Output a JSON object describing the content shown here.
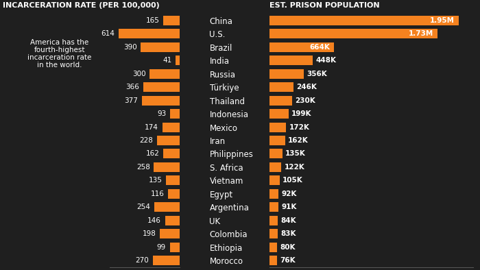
{
  "chart_data": [
    {
      "type": "bar",
      "orientation": "horizontal",
      "title": "INCARCERATION RATE (PER 100,000)",
      "annotation": "America has the fourth-highest incarceration rate in the world.",
      "categories": [
        "China",
        "U.S.",
        "Brazil",
        "India",
        "Russia",
        "Türkiye",
        "Thailand",
        "Indonesia",
        "Mexico",
        "Iran",
        "Philippines",
        "S. Africa",
        "Vietnam",
        "Egypt",
        "Argentina",
        "UK",
        "Colombia",
        "Ethiopia",
        "Morocco"
      ],
      "values": [
        165,
        614,
        390,
        41,
        300,
        366,
        377,
        93,
        174,
        228,
        162,
        258,
        135,
        116,
        254,
        146,
        198,
        99,
        270
      ],
      "color": "#f5821f",
      "xlim": [
        0,
        700
      ],
      "xticks": [],
      "data_labels": true,
      "tick_labels": false,
      "grid": false
    },
    {
      "type": "bar",
      "orientation": "horizontal",
      "title": "EST. PRISON POPULATION",
      "categories": [
        "China",
        "U.S.",
        "Brazil",
        "India",
        "Russia",
        "Türkiye",
        "Thailand",
        "Indonesia",
        "Mexico",
        "Iran",
        "Philippines",
        "S. Africa",
        "Vietnam",
        "Egypt",
        "Argentina",
        "UK",
        "Colombia",
        "Ethiopia",
        "Morocco"
      ],
      "values": [
        1950000,
        1730000,
        664000,
        448000,
        356000,
        246000,
        230000,
        199000,
        172000,
        162000,
        135000,
        122000,
        105000,
        92000,
        91000,
        84000,
        83000,
        80000,
        76000
      ],
      "value_labels": [
        "1.95M",
        "1.73M",
        "664K",
        "448K",
        "356K",
        "246K",
        "230K",
        "199K",
        "172K",
        "162K",
        "135K",
        "122K",
        "105K",
        "92K",
        "91K",
        "84K",
        "83K",
        "80K",
        "76K"
      ],
      "color": "#f5821f",
      "xlim": [
        0,
        2100000
      ],
      "xticks": [],
      "data_labels": true,
      "tick_labels": "y",
      "grid": false
    }
  ]
}
